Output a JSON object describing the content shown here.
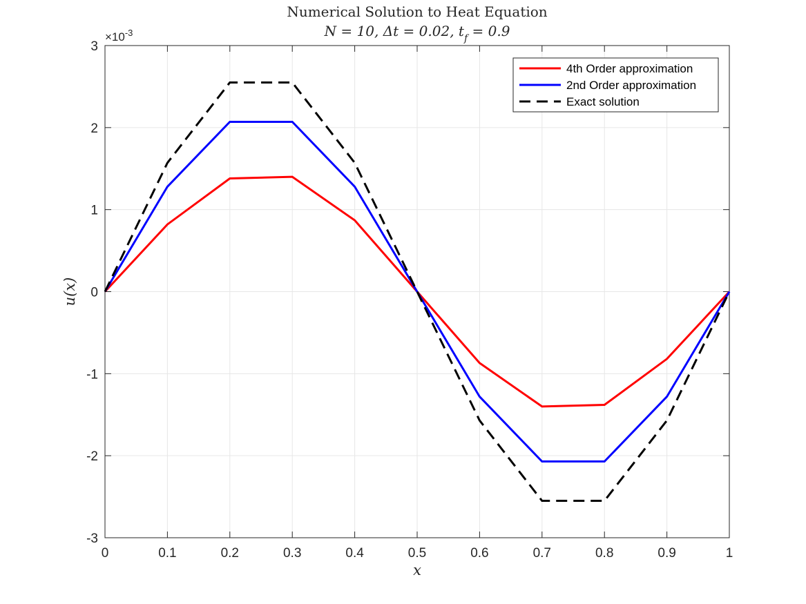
{
  "chart_data": {
    "type": "line",
    "title": "Numerical Solution to Heat Equation",
    "subtitle": "N = 10, Δt = 0.02, t_f = 0.9",
    "subtitle_parts": [
      "N = 10, Δt = 0.02, t",
      "f",
      " = 0.9"
    ],
    "xlabel": "x",
    "ylabel": "u(x)",
    "y_exponent_label": "×10",
    "y_exponent": "-3",
    "xlim": [
      0,
      1
    ],
    "ylim": [
      -3,
      3
    ],
    "x_ticks": [
      "0",
      "0.1",
      "0.2",
      "0.3",
      "0.4",
      "0.5",
      "0.6",
      "0.7",
      "0.8",
      "0.9",
      "1"
    ],
    "y_ticks": [
      "-3",
      "-2",
      "-1",
      "0",
      "1",
      "2",
      "3"
    ],
    "grid": true,
    "legend_position": "top-right",
    "x": [
      0,
      0.1,
      0.2,
      0.3,
      0.4,
      0.5,
      0.6,
      0.7,
      0.8,
      0.9,
      1.0
    ],
    "series": [
      {
        "name": "4th Order approximation",
        "color": "#ff0000",
        "style": "solid",
        "values": [
          0,
          0.82,
          1.38,
          1.4,
          0.87,
          0,
          -0.87,
          -1.4,
          -1.38,
          -0.82,
          0
        ]
      },
      {
        "name": "2nd Order approximation",
        "color": "#0000ff",
        "style": "solid",
        "values": [
          0,
          1.28,
          2.07,
          2.07,
          1.28,
          0,
          -1.28,
          -2.07,
          -2.07,
          -1.28,
          0
        ]
      },
      {
        "name": "Exact solution",
        "color": "#000000",
        "style": "dashed",
        "values": [
          0,
          1.57,
          2.55,
          2.55,
          1.57,
          0,
          -1.57,
          -2.55,
          -2.55,
          -1.57,
          0
        ]
      }
    ]
  }
}
